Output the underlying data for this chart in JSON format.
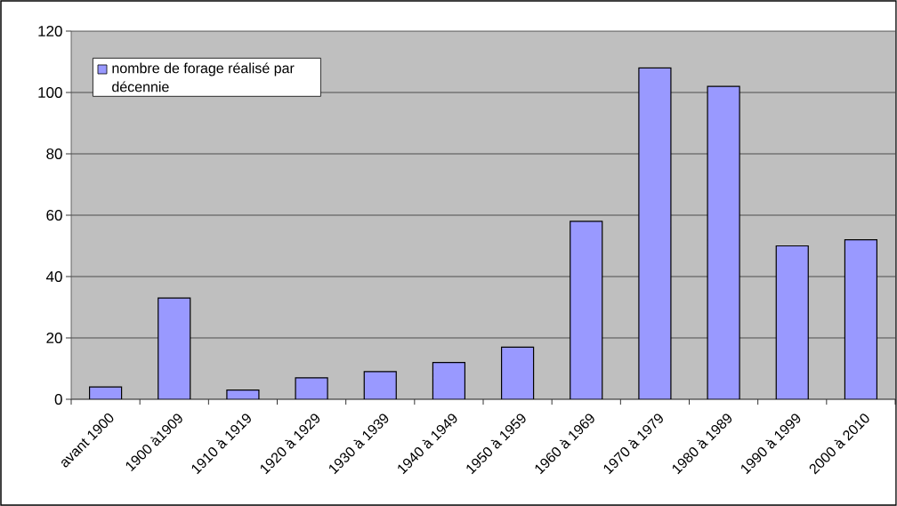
{
  "chart_data": {
    "type": "bar",
    "categories": [
      "avant 1900",
      "1900 à1909",
      "1910 à 1919",
      "1920 à 1929",
      "1930 à 1939",
      "1940 à 1949",
      "1950 à 1959",
      "1960 à 1969",
      "1970 à 1979",
      "1980 à 1989",
      "1990 à 1999",
      "2000 à 2010"
    ],
    "series": [
      {
        "name": "nombre de forage réalisé par décennie",
        "color": "#9999ff",
        "values": [
          4,
          33,
          3,
          7,
          9,
          12,
          17,
          58,
          108,
          102,
          50,
          52
        ]
      }
    ],
    "ylim": [
      0,
      120
    ],
    "yticks": [
      0,
      20,
      40,
      60,
      80,
      100,
      120
    ],
    "grid": "y",
    "legend": "top left"
  }
}
